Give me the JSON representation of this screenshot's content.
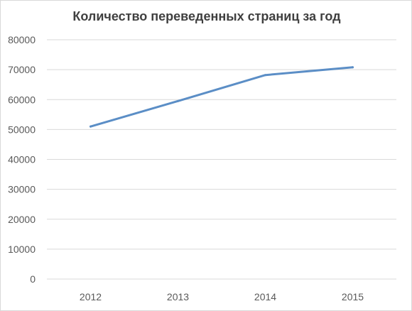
{
  "chart_data": {
    "type": "line",
    "title": "Количество переведенных страниц за год",
    "xlabel": "",
    "ylabel": "",
    "categories": [
      "2012",
      "2013",
      "2014",
      "2015"
    ],
    "series": [
      {
        "values": [
          51000,
          59500,
          68200,
          70800
        ],
        "color": "#5b8ec6"
      }
    ],
    "ylim": [
      0,
      80000
    ],
    "yticks": [
      0,
      10000,
      20000,
      30000,
      40000,
      50000,
      60000,
      70000,
      80000
    ],
    "grid": true,
    "legend": "none",
    "gridColor": "#d9d9d9"
  }
}
